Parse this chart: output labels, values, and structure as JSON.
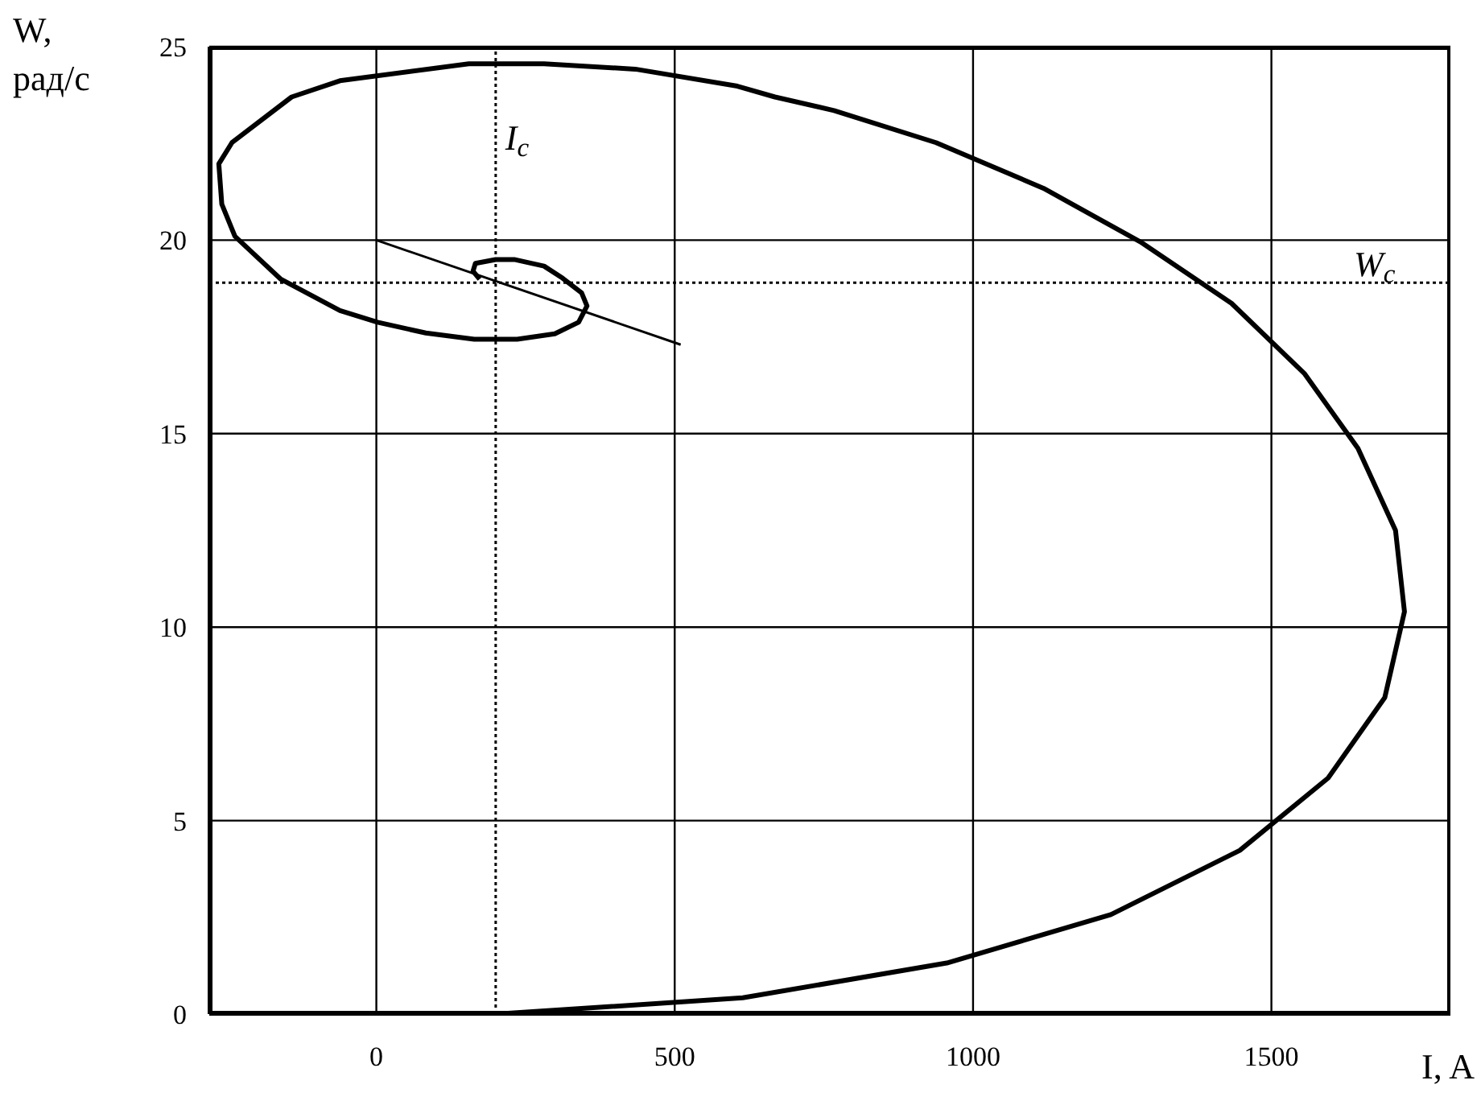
{
  "chart_data": {
    "type": "line",
    "xlabel": "I, A",
    "ylabel": "W, рад/с",
    "xlim": [
      -280,
      1800
    ],
    "xticks": [
      0,
      500,
      1000,
      1500
    ],
    "ylim": [
      0,
      25
    ],
    "yticks": [
      0,
      5,
      10,
      15,
      20,
      25
    ],
    "grid": true,
    "marker": "none",
    "line_style": "solid",
    "series": [
      {
        "color": "#000000",
        "x": [
          0,
          200,
          614,
          956,
          1231,
          1447,
          1595,
          1690,
          1723,
          1708,
          1645,
          1555,
          1433,
          1280,
          1118,
          938,
          767,
          668,
          605,
          434,
          281,
          155,
          -61,
          -142,
          -242,
          -264,
          -259,
          -237,
          -160,
          -61,
          2,
          83,
          164,
          236,
          299,
          339,
          353,
          344,
          312,
          281,
          231,
          200,
          166,
          162,
          173
        ],
        "values": [
          0,
          0,
          0.42,
          1.32,
          2.57,
          4.23,
          6.1,
          8.18,
          10.4,
          12.5,
          14.62,
          16.56,
          18.37,
          19.96,
          21.34,
          22.52,
          23.35,
          23.7,
          23.98,
          24.42,
          24.56,
          24.56,
          24.12,
          23.7,
          22.52,
          21.97,
          20.93,
          20.1,
          18.99,
          18.18,
          17.88,
          17.6,
          17.44,
          17.44,
          17.58,
          17.88,
          18.3,
          18.64,
          19.02,
          19.33,
          19.5,
          19.5,
          19.4,
          19.2,
          18.99
        ]
      },
      {
        "color": "#000000",
        "x": [
          0,
          510
        ],
        "values": [
          20,
          17.3
        ]
      }
    ],
    "ref_lines": [
      {
        "axis": "x",
        "value": 200,
        "label": "I$_{c}$",
        "line_style": "dotted",
        "color": "#000000"
      },
      {
        "axis": "y",
        "value": 18.9,
        "label": "W$_{c}$",
        "line_style": "dotted",
        "color": "#000000"
      }
    ]
  }
}
